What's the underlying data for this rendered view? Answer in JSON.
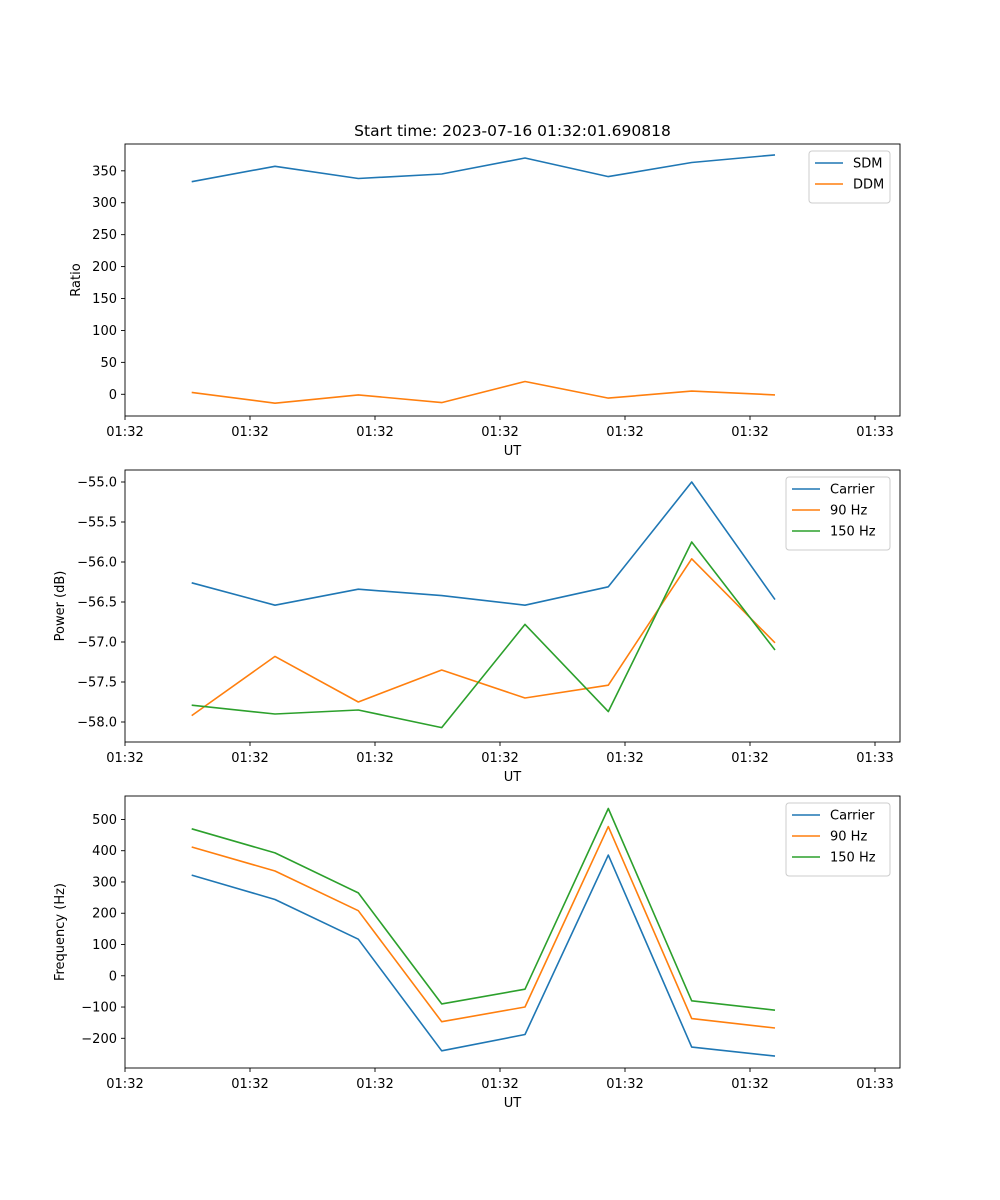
{
  "figure_title": "Start time: 2023-07-16 01:32:01.690818",
  "colors": {
    "blue": "#1f77b4",
    "orange": "#ff7f0e",
    "green": "#2ca02c"
  },
  "chart_data": [
    {
      "type": "line",
      "title": "Start time: 2023-07-16 01:32:01.690818",
      "xlabel": "UT",
      "ylabel": "Ratio",
      "x": [
        1,
        2,
        3,
        4,
        5,
        6,
        7,
        8
      ],
      "xlim": [
        0.2,
        9.5
      ],
      "xticks": [
        0.2,
        1.7,
        3.2,
        4.7,
        6.2,
        7.7,
        9.2
      ],
      "xtick_labels": [
        "01:32",
        "01:32",
        "01:32",
        "01:32",
        "01:32",
        "01:32",
        "01:33"
      ],
      "ylim": [
        -34,
        392
      ],
      "yticks": [
        0,
        50,
        100,
        150,
        200,
        250,
        300,
        350
      ],
      "ytick_labels": [
        "0",
        "50",
        "100",
        "150",
        "200",
        "250",
        "300",
        "350"
      ],
      "legend": "top-right",
      "series": [
        {
          "name": "SDM",
          "color": "#1f77b4",
          "values": [
            333,
            357,
            338,
            345,
            370,
            341,
            363,
            375
          ]
        },
        {
          "name": "DDM",
          "color": "#ff7f0e",
          "values": [
            3,
            -14,
            -1,
            -13,
            20,
            -6,
            5,
            -1
          ]
        }
      ]
    },
    {
      "type": "line",
      "title": "",
      "xlabel": "UT",
      "ylabel": "Power (dB)",
      "x": [
        1,
        2,
        3,
        4,
        5,
        6,
        7,
        8
      ],
      "xlim": [
        0.2,
        9.5
      ],
      "xticks": [
        0.2,
        1.7,
        3.2,
        4.7,
        6.2,
        7.7,
        9.2
      ],
      "xtick_labels": [
        "01:32",
        "01:32",
        "01:32",
        "01:32",
        "01:32",
        "01:32",
        "01:33"
      ],
      "ylim": [
        -58.25,
        -54.85
      ],
      "yticks": [
        -58.0,
        -57.5,
        -57.0,
        -56.5,
        -56.0,
        -55.5,
        -55.0
      ],
      "ytick_labels": [
        "−58.0",
        "−57.5",
        "−57.0",
        "−56.5",
        "−56.0",
        "−55.5",
        "−55.0"
      ],
      "legend": "top-right",
      "series": [
        {
          "name": "Carrier",
          "color": "#1f77b4",
          "values": [
            -56.26,
            -56.54,
            -56.34,
            -56.42,
            -56.54,
            -56.31,
            -55.0,
            -56.47
          ]
        },
        {
          "name": "90 Hz",
          "color": "#ff7f0e",
          "values": [
            -57.92,
            -57.18,
            -57.75,
            -57.35,
            -57.7,
            -57.54,
            -55.96,
            -57.01
          ]
        },
        {
          "name": "150 Hz",
          "color": "#2ca02c",
          "values": [
            -57.79,
            -57.9,
            -57.85,
            -58.07,
            -56.78,
            -57.87,
            -55.75,
            -57.1
          ]
        }
      ]
    },
    {
      "type": "line",
      "title": "",
      "xlabel": "UT",
      "ylabel": "Frequency (Hz)",
      "x": [
        1,
        2,
        3,
        4,
        5,
        6,
        7,
        8
      ],
      "xlim": [
        0.2,
        9.5
      ],
      "xticks": [
        0.2,
        1.7,
        3.2,
        4.7,
        6.2,
        7.7,
        9.2
      ],
      "xtick_labels": [
        "01:32",
        "01:32",
        "01:32",
        "01:32",
        "01:32",
        "01:32",
        "01:33"
      ],
      "ylim": [
        -295,
        575
      ],
      "yticks": [
        -200,
        -100,
        0,
        100,
        200,
        300,
        400,
        500
      ],
      "ytick_labels": [
        "−200",
        "−100",
        "0",
        "100",
        "200",
        "300",
        "400",
        "500"
      ],
      "legend": "top-right",
      "series": [
        {
          "name": "Carrier",
          "color": "#1f77b4",
          "values": [
            322,
            244,
            117,
            -240,
            -188,
            386,
            -228,
            -257
          ]
        },
        {
          "name": "90 Hz",
          "color": "#ff7f0e",
          "values": [
            412,
            335,
            208,
            -147,
            -100,
            477,
            -137,
            -167
          ]
        },
        {
          "name": "150 Hz",
          "color": "#2ca02c",
          "values": [
            470,
            393,
            265,
            -90,
            -43,
            535,
            -80,
            -110
          ]
        }
      ]
    }
  ]
}
